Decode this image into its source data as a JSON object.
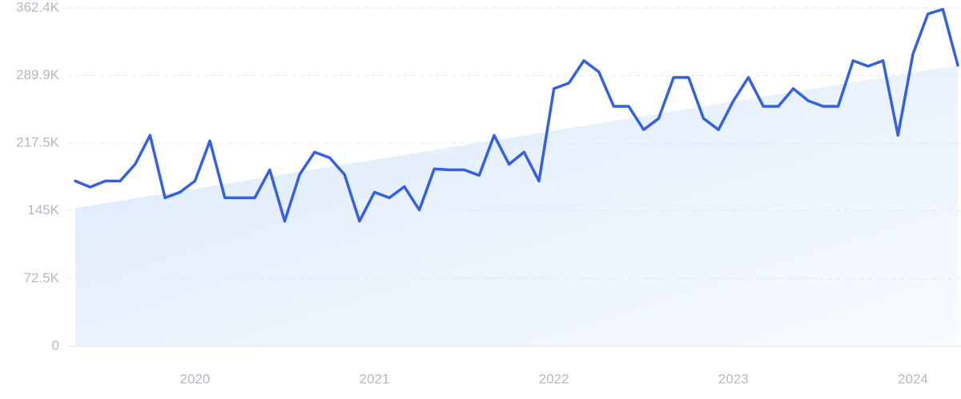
{
  "chart_data": {
    "type": "line",
    "categories": [
      null,
      null,
      null,
      null,
      null,
      null,
      null,
      null,
      "2020",
      null,
      null,
      null,
      null,
      null,
      null,
      null,
      null,
      null,
      null,
      null,
      "2021",
      null,
      null,
      null,
      null,
      null,
      null,
      null,
      null,
      null,
      null,
      null,
      "2022",
      null,
      null,
      null,
      null,
      null,
      null,
      null,
      null,
      null,
      null,
      null,
      "2023",
      null,
      null,
      null,
      null,
      null,
      null,
      null,
      null,
      null,
      null,
      null,
      "2024",
      null,
      null,
      null
    ],
    "series": [
      {
        "color": "#3461e0",
        "values": [
          177000,
          170500,
          177000,
          177000,
          195000,
          226000,
          159000,
          165000,
          177000,
          220000,
          159000,
          159000,
          159000,
          189000,
          134000,
          184000,
          208000,
          202000,
          184000,
          134000,
          165000,
          159000,
          171000,
          146000,
          190000,
          189000,
          189000,
          183000,
          226000,
          195000,
          208000,
          177000,
          276000,
          282000,
          306000,
          294000,
          257000,
          257000,
          232000,
          244000,
          288000,
          288000,
          244000,
          232000,
          263000,
          288000,
          257000,
          257000,
          276000,
          263000,
          257000,
          257000,
          306000,
          300000,
          306000,
          226000,
          313000,
          356000,
          361000,
          301000
        ]
      }
    ],
    "trend": [
      148000,
      301000
    ],
    "ylim": [
      0,
      362400
    ],
    "yticks": [
      0,
      {
        "value": 72500,
        "label": "72.5K"
      },
      {
        "value": 145000,
        "label": "145K"
      },
      {
        "value": 217500,
        "label": "217.5K"
      },
      {
        "value": 289900,
        "label": "289.9K"
      },
      {
        "value": 362400,
        "label": "362.4K"
      }
    ],
    "grid": true
  }
}
